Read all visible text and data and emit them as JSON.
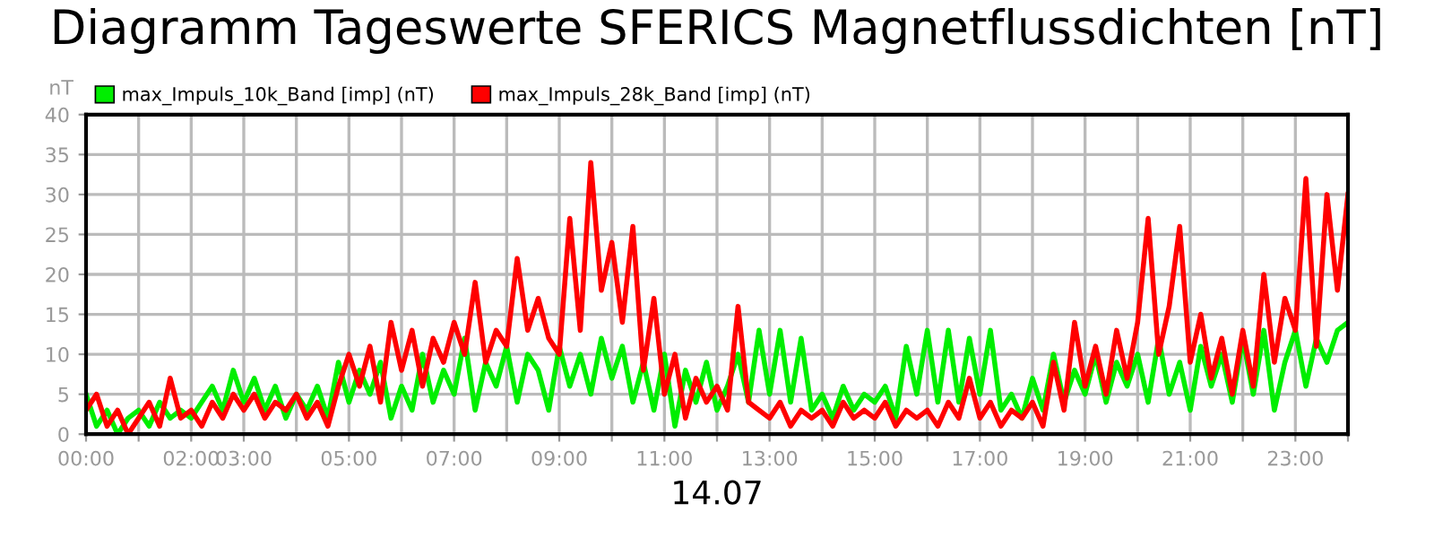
{
  "chart_data": {
    "type": "line",
    "title": "Diagramm Tageswerte SFERICS Magnetflussdichten [nT]",
    "xlabel": "14.07",
    "ylabel": "nT",
    "x": [
      0,
      0.2,
      0.4,
      0.6,
      0.8,
      1,
      1.2,
      1.4,
      1.6,
      1.8,
      2,
      2.2,
      2.4,
      2.6,
      2.8,
      3,
      3.2,
      3.4,
      3.6,
      3.8,
      4,
      4.2,
      4.4,
      4.6,
      4.8,
      5,
      5.2,
      5.4,
      5.6,
      5.8,
      6,
      6.2,
      6.4,
      6.6,
      6.8,
      7,
      7.2,
      7.4,
      7.6,
      7.8,
      8,
      8.2,
      8.4,
      8.6,
      8.8,
      9,
      9.2,
      9.4,
      9.6,
      9.8,
      10,
      10.2,
      10.4,
      10.6,
      10.8,
      11,
      11.2,
      11.4,
      11.6,
      11.8,
      12,
      12.2,
      12.4,
      12.6,
      12.8,
      13,
      13.2,
      13.4,
      13.6,
      13.8,
      14,
      14.2,
      14.4,
      14.6,
      14.8,
      15,
      15.2,
      15.4,
      15.6,
      15.8,
      16,
      16.2,
      16.4,
      16.6,
      16.8,
      17,
      17.2,
      17.4,
      17.6,
      17.8,
      18,
      18.2,
      18.4,
      18.6,
      18.8,
      19,
      19.2,
      19.4,
      19.6,
      19.8,
      20,
      20.2,
      20.4,
      20.6,
      20.8,
      21,
      21.2,
      21.4,
      21.6,
      21.8,
      22,
      22.2,
      22.4,
      22.6,
      22.8,
      23,
      23.2,
      23.4,
      23.6,
      23.8,
      24
    ],
    "series": [
      {
        "name": "max_Impuls_10k_Band [imp] (nT)",
        "color": "#00ee00",
        "values": [
          5,
          1,
          3,
          0,
          2,
          3,
          1,
          4,
          2,
          3,
          2,
          4,
          6,
          3,
          8,
          4,
          7,
          3,
          6,
          2,
          5,
          3,
          6,
          2,
          9,
          4,
          8,
          5,
          9,
          2,
          6,
          3,
          10,
          4,
          8,
          5,
          12,
          3,
          9,
          6,
          11,
          4,
          10,
          8,
          3,
          11,
          6,
          10,
          5,
          12,
          7,
          11,
          4,
          9,
          3,
          10,
          1,
          8,
          4,
          9,
          3,
          6,
          10,
          4,
          13,
          5,
          13,
          4,
          12,
          3,
          5,
          2,
          6,
          3,
          5,
          4,
          6,
          2,
          11,
          5,
          13,
          4,
          13,
          4,
          12,
          5,
          13,
          3,
          5,
          2,
          7,
          3,
          10,
          4,
          8,
          5,
          10,
          4,
          9,
          6,
          10,
          4,
          12,
          5,
          9,
          3,
          11,
          6,
          10,
          4,
          12,
          5,
          13,
          3,
          9,
          13,
          6,
          12,
          9,
          13,
          14
        ]
      },
      {
        "name": "max_Impuls_28k_Band [imp] (nT)",
        "color": "#ff0000",
        "values": [
          3,
          5,
          1,
          3,
          0,
          2,
          4,
          1,
          7,
          2,
          3,
          1,
          4,
          2,
          5,
          3,
          5,
          2,
          4,
          3,
          5,
          2,
          4,
          1,
          6,
          10,
          6,
          11,
          4,
          14,
          8,
          13,
          6,
          12,
          9,
          14,
          10,
          19,
          9,
          13,
          11,
          22,
          13,
          17,
          12,
          10,
          27,
          13,
          34,
          18,
          24,
          14,
          26,
          8,
          17,
          5,
          10,
          2,
          7,
          4,
          6,
          3,
          16,
          4,
          3,
          2,
          4,
          1,
          3,
          2,
          3,
          1,
          4,
          2,
          3,
          2,
          4,
          1,
          3,
          2,
          3,
          1,
          4,
          2,
          7,
          2,
          4,
          1,
          3,
          2,
          4,
          1,
          9,
          3,
          14,
          6,
          11,
          5,
          13,
          7,
          14,
          27,
          10,
          16,
          26,
          9,
          15,
          7,
          12,
          5,
          13,
          6,
          20,
          9,
          17,
          13,
          32,
          11,
          30,
          18,
          30
        ]
      }
    ],
    "xlim": [
      0,
      24
    ],
    "xticks": [
      {
        "value": 0,
        "label": "00:00"
      },
      {
        "value": 1,
        "label": null
      },
      {
        "value": 2,
        "label": "02:00"
      },
      {
        "value": 3,
        "label": "03:00"
      },
      {
        "value": 4,
        "label": null
      },
      {
        "value": 5,
        "label": "05:00"
      },
      {
        "value": 6,
        "label": null
      },
      {
        "value": 7,
        "label": "07:00"
      },
      {
        "value": 8,
        "label": null
      },
      {
        "value": 9,
        "label": "09:00"
      },
      {
        "value": 10,
        "label": null
      },
      {
        "value": 11,
        "label": "11:00"
      },
      {
        "value": 12,
        "label": null
      },
      {
        "value": 13,
        "label": "13:00"
      },
      {
        "value": 14,
        "label": null
      },
      {
        "value": 15,
        "label": "15:00"
      },
      {
        "value": 16,
        "label": null
      },
      {
        "value": 17,
        "label": "17:00"
      },
      {
        "value": 18,
        "label": null
      },
      {
        "value": 19,
        "label": "19:00"
      },
      {
        "value": 20,
        "label": null
      },
      {
        "value": 21,
        "label": "21:00"
      },
      {
        "value": 22,
        "label": null
      },
      {
        "value": 23,
        "label": "23:00"
      },
      {
        "value": 24,
        "label": null
      }
    ],
    "ylim": [
      0,
      40
    ],
    "yticks": [
      0,
      5,
      10,
      15,
      20,
      25,
      30,
      35,
      40
    ],
    "grid": true,
    "legend": "top left",
    "marker": "none",
    "line_style": "solid"
  }
}
